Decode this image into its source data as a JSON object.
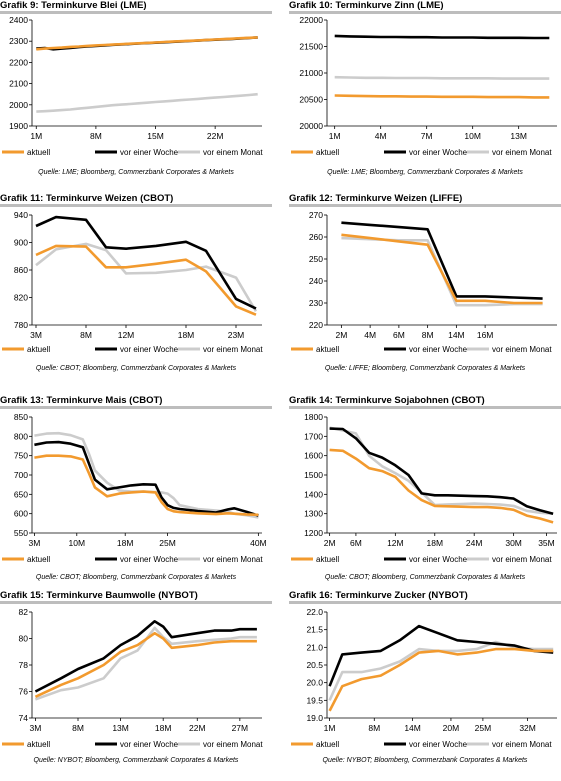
{
  "legend_labels": [
    "aktuell",
    "vor einer Woche",
    "vor einem Monat"
  ],
  "series_colors": [
    "#f29a2e",
    "#000000",
    "#cccccc"
  ],
  "chart_data": [
    {
      "id": "c9",
      "type": "line",
      "title": "Grafik 9: Terminkurve Blei (LME)",
      "source": "Quelle: LME; Bloomberg, Commerzbank Corporates & Markets",
      "xlabel": "",
      "ylabel": "",
      "y_ticks": [
        1900,
        2000,
        2100,
        2200,
        2300,
        2400
      ],
      "ylim": [
        1900,
        2400
      ],
      "x_ticks": [
        "1M",
        "8M",
        "15M",
        "22M"
      ],
      "x_tick_index": [
        0,
        7,
        14,
        21
      ],
      "x_count": 27,
      "grid": false,
      "series": [
        {
          "name": "aktuell",
          "values": [
            2262,
            2265,
            2268,
            2270,
            2273,
            2275,
            2278,
            2280,
            2282,
            2284,
            2286,
            2288,
            2290,
            2292,
            2294,
            2296,
            2298,
            2300,
            2302,
            2304,
            2306,
            2308,
            2310,
            2312,
            2314,
            2316,
            2318
          ]
        },
        {
          "name": "vor einer Woche",
          "values": [
            2265,
            2268,
            2262,
            2265,
            2268,
            2272,
            2275,
            2278,
            2280,
            2283,
            2285,
            2287,
            2289,
            2291,
            2293,
            2295,
            2297,
            2299,
            2301,
            2303,
            2305,
            2307,
            2309,
            2311,
            2313,
            2315,
            2318
          ]
        },
        {
          "name": "vor einem Monat",
          "values": [
            1968,
            1970,
            1972,
            1975,
            1978,
            1982,
            1986,
            1990,
            1994,
            1998,
            2001,
            2004,
            2007,
            2010,
            2013,
            2016,
            2019,
            2022,
            2025,
            2028,
            2031,
            2034,
            2037,
            2040,
            2043,
            2046,
            2050
          ]
        }
      ]
    },
    {
      "id": "c10",
      "type": "line",
      "title": "Grafik 10: Terminkurve Zinn (LME)",
      "source": "Quelle: LME; Bloomberg, Commerzbank Corporates & Markets",
      "xlabel": "",
      "ylabel": "",
      "y_ticks": [
        20000,
        20500,
        21000,
        21500,
        22000
      ],
      "ylim": [
        20000,
        22000
      ],
      "x_ticks": [
        "1M",
        "4M",
        "7M",
        "10M",
        "13M"
      ],
      "x_tick_index": [
        0,
        3,
        6,
        9,
        12
      ],
      "x_count": 15,
      "grid": false,
      "series": [
        {
          "name": "aktuell",
          "values": [
            20575,
            20570,
            20565,
            20560,
            20560,
            20555,
            20555,
            20550,
            20550,
            20550,
            20545,
            20545,
            20545,
            20540,
            20540
          ]
        },
        {
          "name": "vor einer Woche",
          "values": [
            21700,
            21690,
            21685,
            21680,
            21680,
            21675,
            21675,
            21670,
            21670,
            21670,
            21665,
            21665,
            21665,
            21660,
            21660
          ]
        },
        {
          "name": "vor einem Monat",
          "values": [
            20920,
            20915,
            20910,
            20910,
            20905,
            20905,
            20905,
            20900,
            20900,
            20900,
            20900,
            20895,
            20895,
            20895,
            20895
          ]
        }
      ]
    },
    {
      "id": "c11",
      "type": "line",
      "title": "Grafik 11: Terminkurve Weizen (CBOT)",
      "source": "Quelle: CBOT; Bloomberg, Commerzbank Corporates & Markets",
      "xlabel": "",
      "ylabel": "",
      "y_ticks": [
        780,
        820,
        860,
        900,
        940
      ],
      "ylim": [
        780,
        940
      ],
      "x_ticks": [
        "3M",
        "8M",
        "12M",
        "18M",
        "23M"
      ],
      "x_ticks_x": [
        3,
        8,
        12,
        18,
        23
      ],
      "x": [
        3,
        5,
        8,
        10,
        12,
        15,
        18,
        20,
        23,
        25
      ],
      "grid": false,
      "series": [
        {
          "name": "aktuell",
          "values": [
            882,
            895,
            894,
            864,
            864,
            869,
            875,
            858,
            807,
            795
          ]
        },
        {
          "name": "vor einer Woche",
          "values": [
            924,
            937,
            933,
            893,
            891,
            895,
            901,
            888,
            818,
            804
          ]
        },
        {
          "name": "vor einem Monat",
          "values": [
            867,
            890,
            898,
            889,
            855,
            856,
            860,
            865,
            849,
            800
          ]
        }
      ]
    },
    {
      "id": "c12",
      "type": "line",
      "title": "Grafik 12: Terminkurve Weizen (LIFFE)",
      "source": "Quelle: LIFFE; Bloomberg, Commerzbank Corporates & Markets",
      "xlabel": "",
      "ylabel": "",
      "y_ticks": [
        220,
        230,
        240,
        250,
        260,
        270
      ],
      "ylim": [
        220,
        270
      ],
      "x_ticks": [
        "2M",
        "4M",
        "6M",
        "8M",
        "14M",
        "16M"
      ],
      "x_tick_index": [
        0,
        1,
        2,
        3,
        4,
        5
      ],
      "x_count": 8,
      "grid": false,
      "series": [
        {
          "name": "aktuell",
          "values": [
            261,
            259.5,
            258,
            256.5,
            231,
            231,
            230,
            230
          ]
        },
        {
          "name": "vor einer Woche",
          "values": [
            266.5,
            265.5,
            264.5,
            263.5,
            233,
            233,
            232.5,
            232
          ]
        },
        {
          "name": "vor einem Monat",
          "values": [
            259.5,
            259,
            258.5,
            258.5,
            229,
            229,
            229.5,
            229.5
          ]
        }
      ]
    },
    {
      "id": "c13",
      "type": "line",
      "title": "Grafik 13:  Terminkurve Mais (CBOT)",
      "source": "Quelle: CBOT; Bloomberg, Commerzbank Corporates & Markets",
      "xlabel": "",
      "ylabel": "",
      "y_ticks": [
        550,
        600,
        650,
        700,
        750,
        800,
        850
      ],
      "ylim": [
        550,
        850
      ],
      "x_ticks": [
        "3M",
        "10M",
        "18M",
        "25M",
        "40M"
      ],
      "x_ticks_x": [
        3,
        10,
        18,
        25,
        40
      ],
      "x": [
        3,
        5,
        7,
        9,
        11,
        12,
        13,
        15,
        17,
        19,
        21,
        23,
        24,
        25,
        26,
        27,
        30,
        33,
        35,
        36,
        38,
        40
      ],
      "grid": false,
      "series": [
        {
          "name": "aktuell",
          "values": [
            745,
            750,
            750,
            748,
            740,
            705,
            668,
            645,
            652,
            655,
            657,
            655,
            630,
            612,
            606,
            604,
            601,
            599,
            601,
            600,
            598,
            597
          ]
        },
        {
          "name": "vor einer Woche",
          "values": [
            778,
            784,
            785,
            781,
            772,
            730,
            688,
            663,
            668,
            673,
            676,
            675,
            642,
            622,
            615,
            612,
            607,
            603,
            611,
            614,
            605,
            595
          ]
        },
        {
          "name": "vor einem Monat",
          "values": [
            802,
            807,
            808,
            803,
            792,
            755,
            712,
            680,
            660,
            657,
            657,
            656,
            655,
            652,
            640,
            622,
            612,
            608,
            605,
            600,
            596,
            590
          ]
        }
      ]
    },
    {
      "id": "c14",
      "type": "line",
      "title": "Grafik 14: Terminkurve Sojabohnen (CBOT)",
      "source": "Quelle: CBOT; Bloomberg, Commerzbank Corporates & Markets",
      "xlabel": "",
      "ylabel": "",
      "y_ticks": [
        1200,
        1300,
        1400,
        1500,
        1600,
        1700,
        1800
      ],
      "ylim": [
        1200,
        1800
      ],
      "x_ticks": [
        "2M",
        "6M",
        "12M",
        "18M",
        "24M",
        "30M",
        "35M"
      ],
      "x_ticks_x": [
        2,
        6,
        12,
        18,
        24,
        30,
        35
      ],
      "x": [
        2,
        4,
        6,
        8,
        10,
        12,
        14,
        16,
        18,
        20,
        22,
        24,
        26,
        28,
        30,
        32,
        34,
        36
      ],
      "grid": false,
      "series": [
        {
          "name": "aktuell",
          "values": [
            1630,
            1625,
            1585,
            1535,
            1520,
            1490,
            1420,
            1370,
            1340,
            1338,
            1336,
            1334,
            1334,
            1330,
            1320,
            1290,
            1275,
            1255
          ]
        },
        {
          "name": "vor einer Woche",
          "values": [
            1740,
            1738,
            1690,
            1615,
            1590,
            1550,
            1500,
            1405,
            1395,
            1395,
            1393,
            1391,
            1390,
            1385,
            1378,
            1338,
            1318,
            1300
          ]
        },
        {
          "name": "vor einem Monat",
          "values": [
            1745,
            1730,
            1715,
            1600,
            1545,
            1510,
            1470,
            1410,
            1345,
            1348,
            1350,
            1352,
            1350,
            1347,
            1340,
            1315,
            1305,
            1300
          ]
        }
      ]
    },
    {
      "id": "c15",
      "type": "line",
      "title": "Grafik 15: Terminkurve Baumwolle (NYBOT)",
      "source": "Quelle: NYBOT; Bloomberg, Commerzbank Corporates & Markets",
      "xlabel": "",
      "ylabel": "",
      "y_ticks": [
        74,
        76,
        78,
        80,
        82
      ],
      "ylim": [
        74,
        82
      ],
      "x_ticks": [
        "3M",
        "8M",
        "13M",
        "18M",
        "22M",
        "27M"
      ],
      "x_ticks_x": [
        3,
        8,
        13,
        18,
        22,
        27
      ],
      "x": [
        3,
        6,
        8,
        11,
        13,
        15,
        17,
        18,
        19,
        22,
        24,
        26,
        27,
        29
      ],
      "grid": false,
      "series": [
        {
          "name": "aktuell",
          "values": [
            75.6,
            76.5,
            77.0,
            78.0,
            79.0,
            79.5,
            80.4,
            80.0,
            79.3,
            79.5,
            79.7,
            79.8,
            79.8,
            79.8
          ]
        },
        {
          "name": "vor einer Woche",
          "values": [
            76.0,
            77.0,
            77.7,
            78.5,
            79.5,
            80.2,
            81.3,
            80.9,
            80.1,
            80.4,
            80.6,
            80.6,
            80.7,
            80.7
          ]
        },
        {
          "name": "vor einem Monat",
          "values": [
            75.4,
            76.1,
            76.3,
            77.0,
            78.5,
            79.1,
            80.8,
            80.1,
            79.6,
            79.8,
            79.9,
            80.0,
            80.1,
            80.1
          ]
        }
      ]
    },
    {
      "id": "c16",
      "type": "line",
      "title": "Grafik 16: Terminkurve Zucker (NYBOT)",
      "source": "Quelle: NYBOT; Bloomberg, Commerzbank Corporates & Markets",
      "xlabel": "",
      "ylabel": "",
      "y_ticks": [
        19.0,
        19.5,
        20.0,
        20.5,
        21.0,
        21.5,
        22.0
      ],
      "y_labels": [
        "19.0",
        "19.5",
        "20.0",
        "20.5",
        "21.0",
        "21.5",
        "22.0"
      ],
      "ylim": [
        19.0,
        22.0
      ],
      "x_ticks": [
        "1M",
        "8M",
        "14M",
        "20M",
        "25M",
        "32M"
      ],
      "x_ticks_x": [
        1,
        8,
        14,
        20,
        25,
        32
      ],
      "x": [
        1,
        3,
        6,
        9,
        12,
        15,
        18,
        21,
        24,
        27,
        30,
        33,
        36
      ],
      "grid": false,
      "series": [
        {
          "name": "aktuell",
          "values": [
            19.2,
            19.9,
            20.1,
            20.2,
            20.5,
            20.85,
            20.9,
            20.8,
            20.85,
            20.95,
            20.95,
            20.9,
            20.9
          ]
        },
        {
          "name": "vor einer Woche",
          "values": [
            19.9,
            20.8,
            20.85,
            20.9,
            21.2,
            21.6,
            21.4,
            21.2,
            21.15,
            21.1,
            21.05,
            20.9,
            20.85
          ]
        },
        {
          "name": "vor einem Monat",
          "values": [
            19.5,
            20.3,
            20.3,
            20.4,
            20.6,
            20.95,
            20.9,
            20.9,
            20.95,
            21.15,
            21.0,
            20.95,
            20.95
          ]
        }
      ]
    }
  ]
}
